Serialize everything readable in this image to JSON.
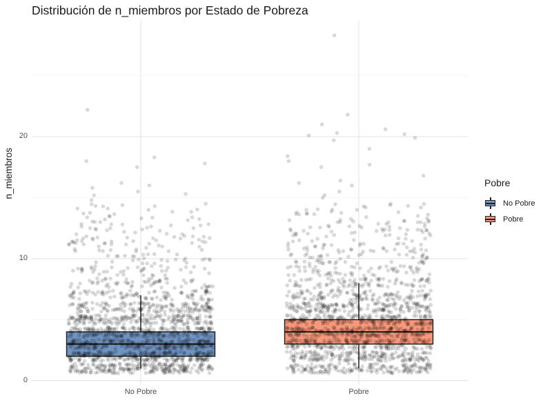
{
  "chart_data": {
    "type": "boxplot",
    "title": "Distribución de n_miembros por Estado de Pobreza",
    "xlabel": "",
    "ylabel": "n_miembros",
    "categories": [
      "No Pobre",
      "Pobre"
    ],
    "y_ticks": [
      0,
      10,
      20
    ],
    "ylim": [
      -0.3,
      29.5
    ],
    "boxes": [
      {
        "category": "No Pobre",
        "q1": 2,
        "median": 3,
        "q3": 4,
        "whisker_low": 1,
        "whisker_high": 7,
        "max": 22,
        "color": "#7093C1"
      },
      {
        "category": "Pobre",
        "q1": 3,
        "median": 4,
        "q3": 5,
        "whisker_low": 1,
        "whisker_high": 8,
        "max": 28,
        "color": "#F8987B"
      }
    ],
    "jitter_points_note_values": {
      "No Pobre": [
        22.2,
        18.3,
        18.0,
        17.8,
        17.5,
        16.2,
        16.0,
        15.8,
        15.5,
        15.3,
        15.2,
        14.8,
        14.5,
        14.0,
        13.7,
        13.5,
        13.0,
        12.8,
        12.5,
        12.2,
        12.0,
        11.8,
        11.5,
        11.2,
        11.0
      ],
      "Pobre": [
        28.3,
        21.8,
        21.0,
        20.6,
        20.3,
        20.2,
        20.1,
        19.9,
        19.7,
        19.0,
        18.4,
        18.0,
        17.7,
        17.5,
        16.8,
        16.4,
        16.2,
        16.0,
        15.5,
        15.2,
        15.0,
        14.5,
        14.2,
        14.0,
        13.5,
        13.0,
        12.5,
        12.0,
        11.5,
        11.0
      ]
    },
    "legend": {
      "title": "Pobre",
      "position": "right",
      "items": [
        {
          "label": "No Pobre",
          "color": "#7093C1"
        },
        {
          "label": "Pobre",
          "color": "#F8987B"
        }
      ]
    },
    "grid": true
  }
}
